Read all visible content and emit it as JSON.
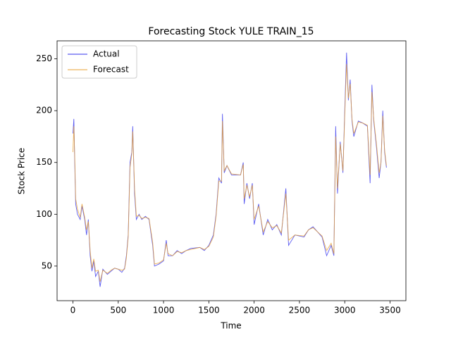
{
  "chart_data": {
    "type": "line",
    "title": "Forecasting Stock YULE TRAIN_15",
    "x_label": "Time",
    "y_label": "Stock Price",
    "x": [
      0,
      10,
      20,
      30,
      50,
      80,
      100,
      130,
      150,
      170,
      190,
      210,
      230,
      250,
      280,
      300,
      330,
      380,
      420,
      460,
      500,
      540,
      570,
      590,
      610,
      630,
      650,
      660,
      680,
      700,
      730,
      760,
      800,
      840,
      880,
      900,
      950,
      1000,
      1030,
      1050,
      1100,
      1150,
      1200,
      1250,
      1300,
      1400,
      1450,
      1500,
      1550,
      1580,
      1610,
      1640,
      1650,
      1670,
      1700,
      1750,
      1850,
      1880,
      1890,
      1920,
      1950,
      1980,
      2000,
      2050,
      2100,
      2150,
      2200,
      2250,
      2300,
      2350,
      2380,
      2450,
      2550,
      2600,
      2650,
      2750,
      2800,
      2850,
      2880,
      2900,
      2920,
      2950,
      2980,
      3000,
      3020,
      3040,
      3060,
      3080,
      3100,
      3150,
      3200,
      3250,
      3280,
      3300,
      3320,
      3350,
      3380,
      3400,
      3420,
      3440,
      3460
    ],
    "series": [
      {
        "name": "Actual",
        "color": "#3333ee",
        "values": [
          178,
          192,
          150,
          110,
          100,
          95,
          108,
          95,
          80,
          95,
          60,
          45,
          55,
          40,
          45,
          30,
          47,
          42,
          45,
          48,
          47,
          44,
          48,
          60,
          80,
          150,
          160,
          185,
          120,
          95,
          100,
          95,
          98,
          95,
          70,
          50,
          52,
          55,
          75,
          60,
          60,
          65,
          62,
          65,
          67,
          68,
          65,
          70,
          80,
          100,
          135,
          130,
          197,
          140,
          147,
          138,
          138,
          150,
          110,
          130,
          115,
          130,
          90,
          110,
          80,
          95,
          85,
          90,
          80,
          125,
          70,
          80,
          78,
          85,
          88,
          78,
          60,
          70,
          60,
          185,
          120,
          170,
          140,
          200,
          256,
          210,
          230,
          190,
          175,
          190,
          188,
          185,
          130,
          225,
          190,
          165,
          135,
          150,
          200,
          160,
          145
        ]
      },
      {
        "name": "Forecast",
        "color": "#e8a030",
        "values": [
          160,
          185,
          155,
          115,
          105,
          97,
          110,
          97,
          85,
          93,
          65,
          48,
          57,
          45,
          46,
          35,
          46,
          43,
          46,
          48,
          47,
          46,
          47,
          58,
          78,
          145,
          158,
          180,
          125,
          98,
          99,
          96,
          97,
          96,
          73,
          52,
          53,
          56,
          72,
          62,
          60,
          64,
          63,
          65,
          66,
          68,
          66,
          69,
          78,
          98,
          132,
          132,
          190,
          142,
          147,
          139,
          138,
          148,
          115,
          128,
          117,
          128,
          95,
          108,
          83,
          93,
          87,
          89,
          82,
          120,
          75,
          80,
          79,
          85,
          87,
          79,
          65,
          72,
          62,
          175,
          125,
          168,
          142,
          195,
          245,
          212,
          226,
          192,
          178,
          189,
          188,
          186,
          138,
          218,
          192,
          168,
          140,
          150,
          195,
          162,
          147
        ]
      }
    ],
    "xlim": [
      -175,
      3675
    ],
    "xticks": [
      0,
      500,
      1000,
      1500,
      2000,
      2500,
      3000,
      3500
    ],
    "ylim": [
      16.6,
      267.4
    ],
    "yticks": [
      50,
      100,
      150,
      200,
      250
    ],
    "legend": "upper left",
    "grid": false
  }
}
